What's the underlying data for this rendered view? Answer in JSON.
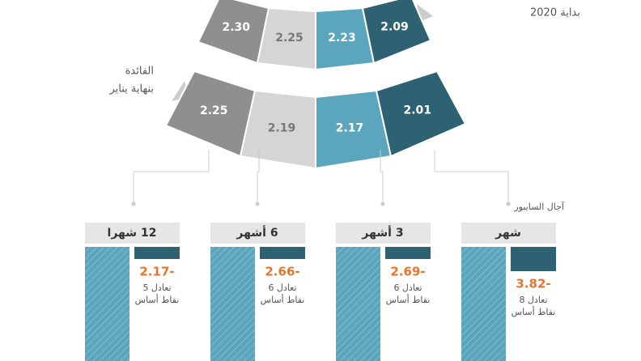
{
  "top_label": "بداية 2020",
  "top_arc": [
    "2.09",
    "2.23",
    "2.25",
    "2.30"
  ],
  "bottom_label": [
    "الفائدة",
    "بنهاية يناير"
  ],
  "bottom_arc": [
    "2.01",
    "2.17",
    "2.19",
    "2.25"
  ],
  "tenor_heading": "آجال السايبور",
  "tenors": [
    {
      "name": "شهر",
      "change": "3.82-",
      "note": [
        "تعادل 8",
        "نقاط أساس"
      ]
    },
    {
      "name": "3 أشهر",
      "change": "2.69-",
      "note": [
        "تعادل 6",
        "نقاط أساس"
      ]
    },
    {
      "name": "6 أشهر",
      "change": "2.66-",
      "note": [
        "تعادل 6",
        "نقاط أساس"
      ]
    },
    {
      "name": "12 شهرا",
      "change": "2.17-",
      "note": [
        "تعادل 5",
        "نقاط أساس"
      ]
    }
  ]
}
